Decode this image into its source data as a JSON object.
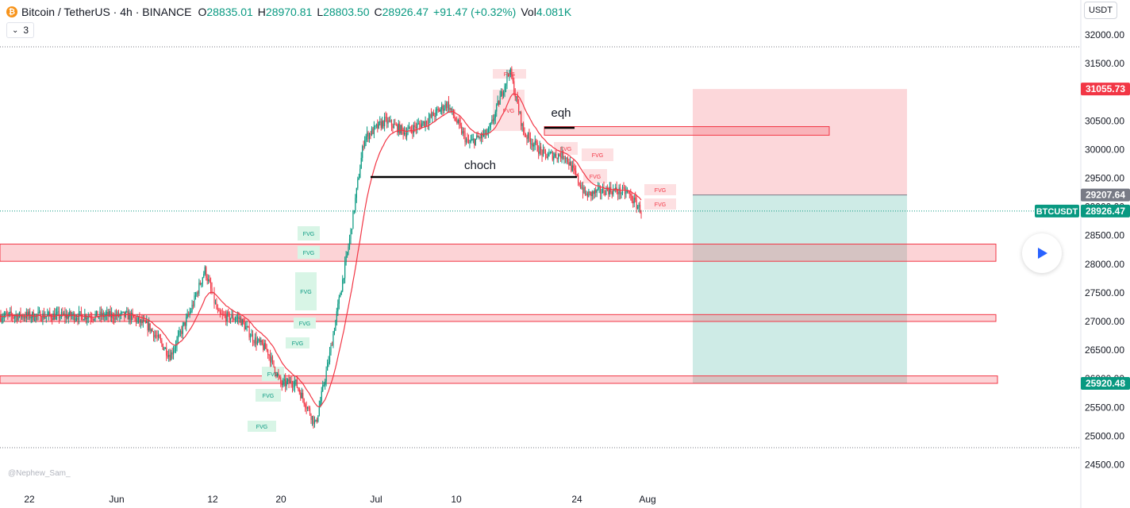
{
  "header": {
    "symbol_badge": "₿",
    "title": "Bitcoin / TetherUS · 4h · BINANCE",
    "open_label": "O",
    "open": "28835.01",
    "high_label": "H",
    "high": "28970.81",
    "low_label": "L",
    "low": "28803.50",
    "close_label": "C",
    "close": "28926.47",
    "change": "+91.47 (+0.32%)",
    "vol_label": "Vol",
    "vol": "4.081K"
  },
  "indicators_button": {
    "icon": "chevron-down-icon",
    "label": "3"
  },
  "currency_button": "USDT",
  "watermark": "@Nephew_Sam_",
  "annotations": {
    "fvg": "FVG",
    "choch": "choch",
    "eqh": "eqh"
  },
  "colors": {
    "up": "#089981",
    "down": "#f23645",
    "ema": "#f23645",
    "zone_fill": "rgba(242,54,69,0.22)",
    "zone_border": "#f23645",
    "fvg_bear": "#fde0e2",
    "fvg_bull": "#d8f5e6",
    "stop_zone": "rgba(242,54,69,0.20)",
    "target_zone": "rgba(8,153,129,0.20)"
  },
  "chart_data": {
    "type": "candlestick",
    "symbol": "BTCUSDT",
    "timeframe": "4h",
    "exchange": "BINANCE",
    "x_tick_labels": [
      "22",
      "Jun",
      "12",
      "20",
      "Jul",
      "10",
      "24",
      "Aug"
    ],
    "y_ticks": [
      24500,
      25000,
      25500,
      26000,
      26500,
      27000,
      27500,
      28000,
      28500,
      29000,
      29500,
      30000,
      30500,
      31000,
      31500,
      32000
    ],
    "y_tick_labels": [
      "24500.00",
      "25000.00",
      "25500.00",
      "26000.00",
      "26500.00",
      "27000.00",
      "27500.00",
      "28000.00",
      "28500.00",
      "29000.00",
      "29500.00",
      "30000.00",
      "30500.00",
      "31000.00",
      "31500.00",
      "32000.00"
    ],
    "ylim": [
      24250,
      32450
    ],
    "price_path_approx": [
      {
        "x": "May 19",
        "y": 27100
      },
      {
        "x": "May 22",
        "y": 26900
      },
      {
        "x": "May 25",
        "y": 26400
      },
      {
        "x": "May 28",
        "y": 27200
      },
      {
        "x": "May 30",
        "y": 27900
      },
      {
        "x": "Jun 1",
        "y": 27100
      },
      {
        "x": "Jun 4",
        "y": 27050
      },
      {
        "x": "Jun 6",
        "y": 26700
      },
      {
        "x": "Jun 8",
        "y": 26500
      },
      {
        "x": "Jun 10",
        "y": 25900
      },
      {
        "x": "Jun 12",
        "y": 25950
      },
      {
        "x": "Jun 15",
        "y": 25200
      },
      {
        "x": "Jun 17",
        "y": 26400
      },
      {
        "x": "Jun 20",
        "y": 28500
      },
      {
        "x": "Jun 22",
        "y": 30200
      },
      {
        "x": "Jun 25",
        "y": 30500
      },
      {
        "x": "Jun 28",
        "y": 30300
      },
      {
        "x": "Jul 1",
        "y": 30500
      },
      {
        "x": "Jul 4",
        "y": 30800
      },
      {
        "x": "Jul 7",
        "y": 30100
      },
      {
        "x": "Jul 10",
        "y": 30300
      },
      {
        "x": "Jul 13",
        "y": 31400
      },
      {
        "x": "Jul 15",
        "y": 30300
      },
      {
        "x": "Jul 18",
        "y": 29900
      },
      {
        "x": "Jul 21",
        "y": 29900
      },
      {
        "x": "Jul 24",
        "y": 29200
      },
      {
        "x": "Jul 27",
        "y": 29300
      },
      {
        "x": "Jul 30",
        "y": 29250
      },
      {
        "x": "Aug 1",
        "y": 28926.47
      }
    ],
    "horizontal_zones": [
      {
        "from": 28050,
        "to": 28350
      },
      {
        "from": 27000,
        "to": 27120
      },
      {
        "from": 25920,
        "to": 26050
      }
    ],
    "eqh_zone": {
      "from": 30250,
      "to": 30400
    },
    "choch_level": 29520,
    "position": {
      "stop": 31055.73,
      "entry": 29207.64,
      "target": 25920.48
    },
    "price_labels": [
      {
        "text": "31055.73",
        "value": 31055.73,
        "color": "#f23645"
      },
      {
        "text": "29207.64",
        "value": 29207.64,
        "color": "#787b86"
      },
      {
        "text": "28926.47",
        "value": 28926.47,
        "color": "#089981",
        "tag": "BTCUSDT"
      },
      {
        "text": "25920.48",
        "value": 25920.48,
        "color": "#089981"
      }
    ],
    "grid": false,
    "legend": "none"
  }
}
